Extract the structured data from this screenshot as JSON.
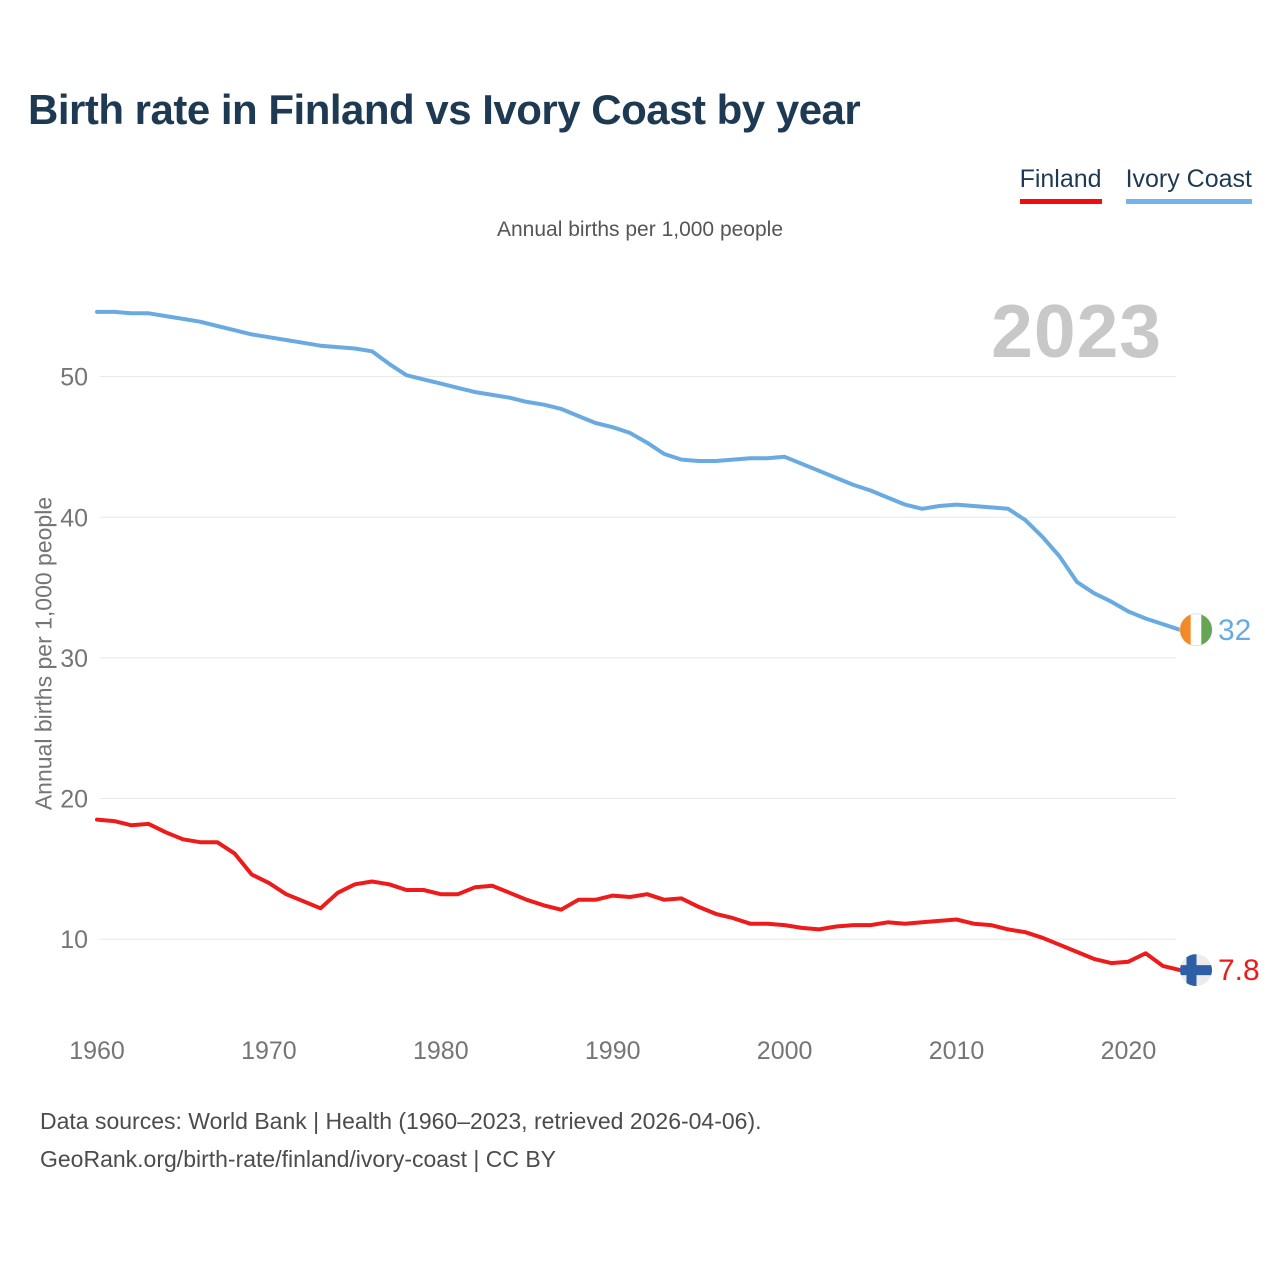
{
  "header": {
    "title": "Birth rate in Finland vs Ivory Coast by year"
  },
  "subtitle": "Annual births per 1,000 people",
  "watermark": "2023",
  "y_axis_title": "Annual births per 1,000 people",
  "footer": {
    "line1": "Data sources: World Bank | Health (1960–2023, retrieved 2026-04-06).",
    "line2": "GeoRank.org/birth-rate/finland/ivory-coast | CC BY"
  },
  "colors": {
    "grid": "#e8e8e8",
    "tick_text": "#757575",
    "finland": "#ee1b1b",
    "ivory_coast": "#69abe1"
  },
  "chart_data": {
    "type": "line",
    "title": "Birth rate in Finland vs Ivory Coast by year",
    "subtitle": "Annual births per 1,000 people",
    "ylabel": "Annual births per 1,000 people",
    "grid": true,
    "legend_position": "top-right",
    "x_start_year": 1960,
    "x_end_year": 2023,
    "x_ticks": [
      1960,
      1970,
      1980,
      1990,
      2000,
      2010,
      2020
    ],
    "y_ticks": [
      10,
      20,
      30,
      40,
      50
    ],
    "ylim": [
      4,
      57
    ],
    "series": [
      {
        "name": "Ivory Coast",
        "color": "#69abe1",
        "end_label": "32",
        "flag": {
          "icon": "ivory-coast-flag",
          "orange": "#f28b27",
          "white": "#ffffff",
          "green": "#66a556"
        },
        "values": [
          54.6,
          54.6,
          54.5,
          54.5,
          54.3,
          54.1,
          53.9,
          53.6,
          53.3,
          53.0,
          52.8,
          52.6,
          52.4,
          52.2,
          52.1,
          52.0,
          51.8,
          50.9,
          50.1,
          49.8,
          49.5,
          49.2,
          48.9,
          48.7,
          48.5,
          48.2,
          48.0,
          47.7,
          47.2,
          46.7,
          46.4,
          46.0,
          45.3,
          44.5,
          44.1,
          44.0,
          44.0,
          44.1,
          44.2,
          44.2,
          44.3,
          43.8,
          43.3,
          42.8,
          42.3,
          41.9,
          41.4,
          40.9,
          40.6,
          40.8,
          40.9,
          40.8,
          40.7,
          40.6,
          39.8,
          38.6,
          37.2,
          35.4,
          34.6,
          34.0,
          33.3,
          32.8,
          32.4,
          32.0
        ]
      },
      {
        "name": "Finland",
        "color": "#ee1b1b",
        "end_label": "7.8",
        "flag": {
          "icon": "finland-flag",
          "background": "#ececec",
          "cross": "#2d5fa6"
        },
        "values": [
          18.5,
          18.4,
          18.1,
          18.2,
          17.6,
          17.1,
          16.9,
          16.9,
          16.1,
          14.6,
          14.0,
          13.2,
          12.7,
          12.2,
          13.3,
          13.9,
          14.1,
          13.9,
          13.5,
          13.5,
          13.2,
          13.2,
          13.7,
          13.8,
          13.3,
          12.8,
          12.4,
          12.1,
          12.8,
          12.8,
          13.1,
          13.0,
          13.2,
          12.8,
          12.9,
          12.3,
          11.8,
          11.5,
          11.1,
          11.1,
          11.0,
          10.8,
          10.7,
          10.9,
          11.0,
          11.0,
          11.2,
          11.1,
          11.2,
          11.3,
          11.4,
          11.1,
          11.0,
          10.7,
          10.5,
          10.1,
          9.6,
          9.1,
          8.6,
          8.3,
          8.4,
          9.0,
          8.1,
          7.8
        ]
      }
    ]
  }
}
